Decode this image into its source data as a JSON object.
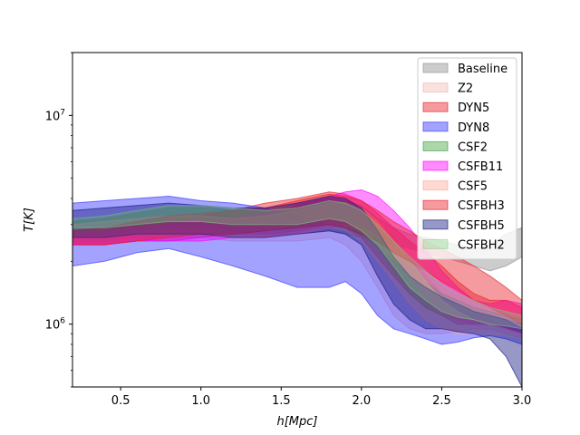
{
  "chart_data": {
    "type": "area",
    "title": "",
    "xlabel": "h[Mpc]",
    "ylabel": "T[K]",
    "xlim": [
      0.2,
      3.0
    ],
    "ylim": [
      500000,
      20000000
    ],
    "yscale": "log",
    "legend_position": "top-right",
    "x_ticks": [
      {
        "value": 0.5,
        "label": "0.5"
      },
      {
        "value": 1.0,
        "label": "1.0"
      },
      {
        "value": 1.5,
        "label": "1.5"
      },
      {
        "value": 2.0,
        "label": "2.0"
      },
      {
        "value": 2.5,
        "label": "2.5"
      },
      {
        "value": 3.0,
        "label": "3.0"
      }
    ],
    "y_ticks": [
      {
        "value": 1000000,
        "label": "10^6"
      },
      {
        "value": 10000000,
        "label": "10^7"
      }
    ],
    "x": [
      0.2,
      0.4,
      0.6,
      0.8,
      1.0,
      1.2,
      1.4,
      1.6,
      1.8,
      1.9,
      2.0,
      2.1,
      2.2,
      2.3,
      2.4,
      2.5,
      2.6,
      2.7,
      2.8,
      2.9,
      3.0
    ],
    "series": [
      {
        "name": "Baseline",
        "color": "#999999",
        "opacity": 0.5,
        "upper": [
          3200000,
          3300000,
          3500000,
          3700000,
          3700000,
          3500000,
          3500000,
          3800000,
          4000000,
          3900000,
          3700000,
          3200000,
          2900000,
          2700000,
          2600000,
          2500000,
          2400000,
          2300000,
          2400000,
          2700000,
          2900000
        ],
        "lower": [
          2700000,
          2700000,
          2800000,
          2900000,
          2900000,
          2800000,
          2700000,
          2700000,
          2800000,
          2700000,
          2600000,
          2500000,
          2400000,
          2300000,
          2200000,
          2100000,
          2000000,
          1900000,
          1800000,
          1900000,
          2100000
        ]
      },
      {
        "name": "Z2",
        "color": "#f4a6a6",
        "opacity": 0.35,
        "upper": [
          3100000,
          3200000,
          3300000,
          3400000,
          3400000,
          3300000,
          3300000,
          3500000,
          3800000,
          3700000,
          3500000,
          3100000,
          2600000,
          2100000,
          1700000,
          1400000,
          1200000,
          1100000,
          1050000,
          1000000,
          950000
        ],
        "lower": [
          2500000,
          2500000,
          2600000,
          2600000,
          2600000,
          2500000,
          2500000,
          2500000,
          2600000,
          2400000,
          2000000,
          1500000,
          1100000,
          950000,
          900000,
          900000,
          920000,
          950000,
          950000,
          900000,
          850000
        ]
      },
      {
        "name": "DYN5",
        "color": "#e8202a",
        "opacity": 0.45,
        "upper": [
          2800000,
          2800000,
          3000000,
          3100000,
          3300000,
          3500000,
          3800000,
          4000000,
          4300000,
          4200000,
          3900000,
          3400000,
          2900000,
          2500000,
          2200000,
          1900000,
          1600000,
          1400000,
          1300000,
          1300000,
          1200000
        ],
        "lower": [
          2400000,
          2400000,
          2500000,
          2500000,
          2600000,
          2700000,
          2700000,
          2800000,
          3000000,
          2900000,
          2600000,
          2100000,
          1700000,
          1400000,
          1200000,
          1100000,
          1000000,
          1000000,
          1000000,
          950000,
          900000
        ]
      },
      {
        "name": "DYN8",
        "color": "#3333ff",
        "opacity": 0.45,
        "upper": [
          3800000,
          3900000,
          4000000,
          4100000,
          3900000,
          3800000,
          3600000,
          3300000,
          3000000,
          2900000,
          2700000,
          2400000,
          2000000,
          1700000,
          1500000,
          1350000,
          1250000,
          1150000,
          1100000,
          1050000,
          1000000
        ],
        "lower": [
          1900000,
          2000000,
          2200000,
          2300000,
          2100000,
          1900000,
          1700000,
          1500000,
          1500000,
          1600000,
          1400000,
          1100000,
          950000,
          900000,
          850000,
          800000,
          820000,
          860000,
          880000,
          850000,
          800000
        ]
      },
      {
        "name": "CSF2",
        "color": "#2e9a2e",
        "opacity": 0.4,
        "upper": [
          3100000,
          3200000,
          3400000,
          3600000,
          3600000,
          3500000,
          3400000,
          3600000,
          3900000,
          3800000,
          3500000,
          3000000,
          2500000,
          2000000,
          1600000,
          1400000,
          1300000,
          1200000,
          1150000,
          1100000,
          1050000
        ],
        "lower": [
          2800000,
          2800000,
          2900000,
          3000000,
          3000000,
          2900000,
          2900000,
          2900000,
          3100000,
          3000000,
          2700000,
          2300000,
          1800000,
          1400000,
          1200000,
          1100000,
          1050000,
          1000000,
          1000000,
          950000,
          900000
        ]
      },
      {
        "name": "CSFB11",
        "color": "#ff00ff",
        "opacity": 0.45,
        "upper": [
          2700000,
          2800000,
          2900000,
          3000000,
          3100000,
          3200000,
          3400000,
          3700000,
          4100000,
          4300000,
          4400000,
          4100000,
          3500000,
          2900000,
          2300000,
          1800000,
          1500000,
          1300000,
          1250000,
          1300000,
          1250000
        ],
        "lower": [
          2400000,
          2400000,
          2500000,
          2500000,
          2500000,
          2600000,
          2600000,
          2700000,
          2900000,
          3000000,
          3000000,
          2700000,
          2200000,
          1700000,
          1350000,
          1150000,
          1050000,
          1000000,
          1000000,
          950000,
          900000
        ]
      },
      {
        "name": "CSF5",
        "color": "#ff9f8f",
        "opacity": 0.4,
        "upper": [
          3000000,
          3100000,
          3200000,
          3300000,
          3300000,
          3200000,
          3300000,
          3500000,
          3800000,
          3800000,
          3600000,
          3100000,
          2500000,
          2000000,
          1600000,
          1300000,
          1150000,
          1050000,
          1000000,
          950000,
          900000
        ],
        "lower": [
          2600000,
          2600000,
          2700000,
          2700000,
          2700000,
          2600000,
          2600000,
          2700000,
          2900000,
          2800000,
          2500000,
          2000000,
          1600000,
          1250000,
          1050000,
          950000,
          900000,
          900000,
          900000,
          880000,
          850000
        ]
      },
      {
        "name": "CSFBH3",
        "color": "#e8202a",
        "opacity": 0.45,
        "upper": [
          2800000,
          2900000,
          3100000,
          3300000,
          3400000,
          3500000,
          3600000,
          3900000,
          4200000,
          4100000,
          3900000,
          3500000,
          3100000,
          2800000,
          2500000,
          2300000,
          2100000,
          1900000,
          1700000,
          1500000,
          1300000
        ],
        "lower": [
          2400000,
          2400000,
          2500000,
          2600000,
          2700000,
          2700000,
          2800000,
          2900000,
          3000000,
          2900000,
          2700000,
          2500000,
          2200000,
          2000000,
          1800000,
          1600000,
          1450000,
          1300000,
          1200000,
          1100000,
          1000000
        ]
      },
      {
        "name": "CSFBH5",
        "color": "#1a1a80",
        "opacity": 0.45,
        "upper": [
          3500000,
          3600000,
          3700000,
          3800000,
          3700000,
          3600000,
          3600000,
          3800000,
          4100000,
          4000000,
          3600000,
          2800000,
          2100000,
          1700000,
          1500000,
          1350000,
          1250000,
          1150000,
          1100000,
          1050000,
          950000
        ],
        "lower": [
          2600000,
          2600000,
          2700000,
          2700000,
          2700000,
          2600000,
          2600000,
          2700000,
          2800000,
          2700000,
          2400000,
          1700000,
          1250000,
          1050000,
          950000,
          950000,
          920000,
          900000,
          850000,
          700000,
          500000
        ]
      },
      {
        "name": "CSFBH2",
        "color": "#7fd17f",
        "opacity": 0.35,
        "upper": [
          3200000,
          3300000,
          3500000,
          3700000,
          3700000,
          3600000,
          3500000,
          3600000,
          3900000,
          3800000,
          3500000,
          3000000,
          2500000,
          2100000,
          1800000,
          1550000,
          1400000,
          1300000,
          1200000,
          1150000,
          1100000
        ],
        "lower": [
          2900000,
          2900000,
          3000000,
          3100000,
          3100000,
          3000000,
          3000000,
          3000000,
          3200000,
          3100000,
          2800000,
          2400000,
          1900000,
          1500000,
          1300000,
          1150000,
          1080000,
          1050000,
          1000000,
          980000,
          950000
        ]
      }
    ]
  }
}
